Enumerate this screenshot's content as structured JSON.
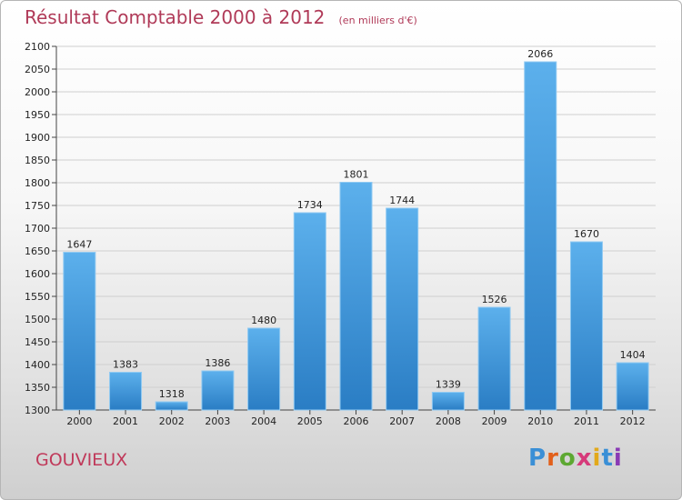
{
  "header": {
    "title": "Résultat Comptable 2000 à 2012",
    "unit": "(en milliers d'€)"
  },
  "footer": {
    "commune": "GOUVIEUX",
    "logo": {
      "text": "Proxiti",
      "letter_colors": [
        "#3a8fd6",
        "#e2601b",
        "#5da832",
        "#d63a7a",
        "#e2a91b",
        "#3a8fd6",
        "#8a3ab5"
      ]
    }
  },
  "colors": {
    "bar_top": "#5cb0ec",
    "bar_bottom": "#2a7dc4",
    "grid": "#cfcfcf",
    "axis": "#444444",
    "label": "#222222",
    "title": "#b03a58"
  },
  "chart_data": {
    "type": "bar",
    "title": "Résultat Comptable 2000 à 2012",
    "subtitle": "(en milliers d'€)",
    "xlabel": "",
    "ylabel": "",
    "categories": [
      "2000",
      "2001",
      "2002",
      "2003",
      "2004",
      "2005",
      "2006",
      "2007",
      "2008",
      "2009",
      "2010",
      "2011",
      "2012"
    ],
    "values": [
      1647,
      1383,
      1318,
      1386,
      1480,
      1734,
      1801,
      1744,
      1339,
      1526,
      2066,
      1670,
      1404
    ],
    "ylim": [
      1300,
      2100
    ],
    "yticks": [
      1300,
      1350,
      1400,
      1450,
      1500,
      1550,
      1600,
      1650,
      1700,
      1750,
      1800,
      1850,
      1900,
      1950,
      2000,
      2050,
      2100
    ],
    "grid": true,
    "data_labels": true
  }
}
